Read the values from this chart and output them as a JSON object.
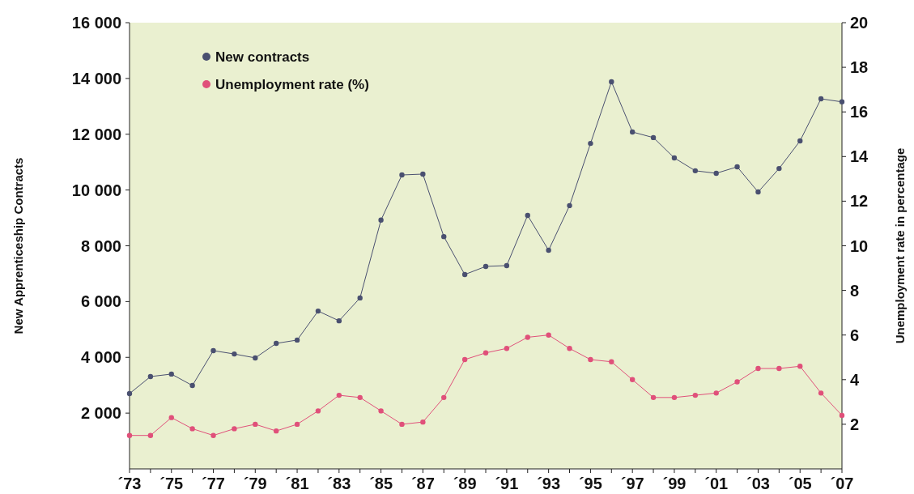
{
  "chart_data": {
    "type": "line",
    "ylabel": "New Apprenticeship Contracts",
    "y2label": "Unemployment rate in percentage",
    "categories": [
      "´73",
      null,
      "´75",
      null,
      "´77",
      null,
      "´79",
      null,
      "´81",
      null,
      "´83",
      null,
      "´85",
      null,
      "´87",
      null,
      "´89",
      null,
      "´91",
      null,
      "´93",
      null,
      "´95",
      null,
      "´97",
      null,
      "´99",
      null,
      "´01",
      null,
      "´03",
      null,
      "´05",
      null,
      "´07"
    ],
    "ylim": [
      0,
      16000
    ],
    "yticks": [
      {
        "value": 2000,
        "label": "2 000"
      },
      {
        "value": 4000,
        "label": "4 000"
      },
      {
        "value": 6000,
        "label": "6 000"
      },
      {
        "value": 8000,
        "label": "8 000"
      },
      {
        "value": 10000,
        "label": "10 000"
      },
      {
        "value": 12000,
        "label": "12 000"
      },
      {
        "value": 14000,
        "label": "14 000"
      },
      {
        "value": 16000,
        "label": "16 000"
      }
    ],
    "y2lim": [
      0,
      20
    ],
    "y2ticks": [
      2,
      4,
      6,
      8,
      10,
      12,
      14,
      16,
      18,
      20
    ],
    "series": [
      {
        "name": "New contracts",
        "color": "#4a5070",
        "values": [
          2700,
          3310,
          3400,
          2990,
          4240,
          4120,
          3980,
          4500,
          4620,
          5660,
          5310,
          6130,
          8920,
          10540,
          10570,
          8330,
          6970,
          7260,
          7290,
          9090,
          7840,
          9440,
          11670,
          13880,
          12080,
          11880,
          11150,
          10690,
          10600,
          10830,
          9930,
          10770,
          11760,
          13270,
          13160
        ]
      },
      {
        "name": "Unemployment rate (%)",
        "color": "#e0507a",
        "axis": "y2",
        "values": [
          1.5,
          1.5,
          2.3,
          1.8,
          1.5,
          1.8,
          2.0,
          1.7,
          2.0,
          2.6,
          3.3,
          3.2,
          2.6,
          2.0,
          2.1,
          3.2,
          4.9,
          5.2,
          5.4,
          5.9,
          6.0,
          5.4,
          4.9,
          4.8,
          4.0,
          3.2,
          3.2,
          3.3,
          3.4,
          3.9,
          4.5,
          4.5,
          4.6,
          3.4,
          2.4
        ]
      }
    ],
    "legend": "top left",
    "marker": "circle",
    "line_style": "solid",
    "grid": false
  }
}
